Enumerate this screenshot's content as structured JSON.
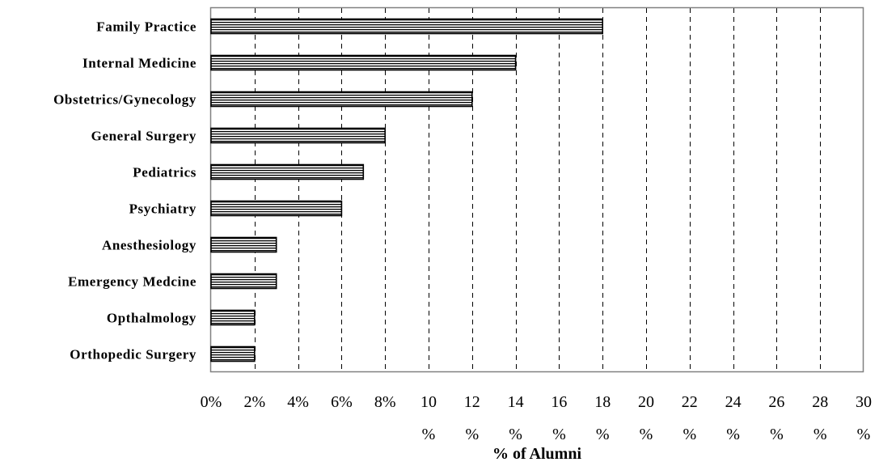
{
  "chart_data": {
    "type": "bar",
    "orientation": "horizontal",
    "categories": [
      "Family Practice",
      "Internal Medicine",
      "Obstetrics/Gynecology",
      "General Surgery",
      "Pediatrics",
      "Psychiatry",
      "Anesthesiology",
      "Emergency Medcine",
      "Opthalmology",
      "Orthopedic Surgery"
    ],
    "values": [
      18,
      14,
      12,
      8,
      7,
      6,
      3,
      3,
      2,
      2
    ],
    "xlabel": "% of Alumni",
    "ylabel": "",
    "title": "",
    "xlim": [
      0,
      30
    ],
    "xticks": [
      0,
      2,
      4,
      6,
      8,
      10,
      12,
      14,
      16,
      18,
      20,
      22,
      24,
      26,
      28,
      30
    ],
    "xtick_labels": [
      [
        "0%"
      ],
      [
        "2%"
      ],
      [
        "4%"
      ],
      [
        "6%"
      ],
      [
        "8%"
      ],
      [
        "10",
        "%"
      ],
      [
        "12",
        "%"
      ],
      [
        "14",
        "%"
      ],
      [
        "16",
        "%"
      ],
      [
        "18",
        "%"
      ],
      [
        "20",
        "%"
      ],
      [
        "22",
        "%"
      ],
      [
        "24",
        "%"
      ],
      [
        "26",
        "%"
      ],
      [
        "28",
        "%"
      ],
      [
        "30",
        "%"
      ]
    ],
    "grid": "vertical dashed",
    "legend": "none",
    "bar_fill": "horizontal stripes",
    "colors": {
      "bar_stripe": "#000000",
      "bar_bg": "#ffffff",
      "grid": "#000000",
      "frame": "#808080"
    }
  }
}
